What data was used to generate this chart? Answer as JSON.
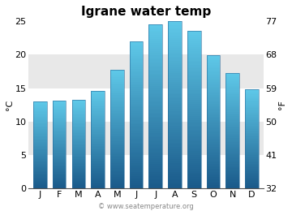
{
  "title": "Igrane water temp",
  "months": [
    "J",
    "F",
    "M",
    "A",
    "M",
    "J",
    "J",
    "A",
    "S",
    "O",
    "N",
    "D"
  ],
  "values": [
    13.0,
    13.1,
    13.2,
    14.6,
    17.7,
    22.0,
    24.5,
    25.0,
    23.5,
    19.9,
    17.3,
    14.8
  ],
  "ylim_c": [
    0,
    25
  ],
  "yticks_c": [
    0,
    5,
    10,
    15,
    20,
    25
  ],
  "yticks_f": [
    32,
    41,
    50,
    59,
    68,
    77
  ],
  "ylabel_left": "°C",
  "ylabel_right": "°F",
  "bar_color_bottom": "#1a5a8a",
  "bar_color_top": "#5ec8e8",
  "bar_edge_color": "#2a6a9a",
  "bg_bands": [
    "#ffffff",
    "#eeeeee"
  ],
  "band_ranges": [
    [
      20,
      25
    ],
    [
      15,
      20
    ],
    [
      10,
      15
    ],
    [
      5,
      10
    ],
    [
      0,
      5
    ]
  ],
  "band_colors": [
    "#ffffff",
    "#e8e8e8",
    "#ffffff",
    "#e8e8e8",
    "#ffffff"
  ],
  "figure_bg": "#ffffff",
  "watermark": "© www.seatemperature.org",
  "title_fontsize": 11,
  "axis_label_fontsize": 8,
  "tick_fontsize": 8,
  "watermark_fontsize": 6
}
